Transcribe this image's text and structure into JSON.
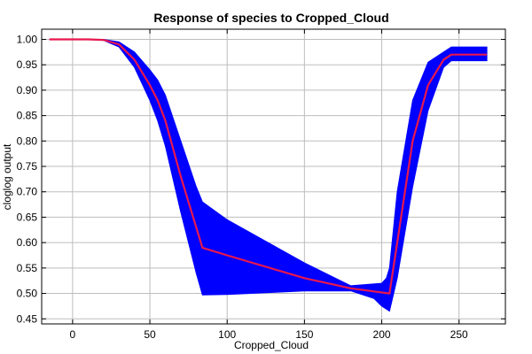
{
  "chart_data": {
    "type": "line",
    "title": "Response of species to Cropped_Cloud",
    "xlabel": "Cropped_Cloud",
    "ylabel": "cloglog output",
    "xlim": [
      -20,
      280
    ],
    "ylim": [
      0.44,
      1.02
    ],
    "grid": true,
    "x_ticks": [
      0,
      50,
      100,
      150,
      200,
      250
    ],
    "y_ticks": [
      0.45,
      0.5,
      0.55,
      0.6,
      0.65,
      0.7,
      0.75,
      0.8,
      0.85,
      0.9,
      0.95,
      1.0
    ],
    "colors": {
      "band": "#0000ff",
      "mean": "#e8174e"
    },
    "series": [
      {
        "role": "mean",
        "x": [
          -15,
          0,
          10,
          20,
          30,
          40,
          50,
          55,
          60,
          70,
          80,
          84,
          100,
          150,
          180,
          205,
          210,
          220,
          230,
          240,
          245,
          268
        ],
        "y": [
          1.0,
          1.0,
          1.0,
          0.999,
          0.99,
          0.96,
          0.91,
          0.88,
          0.84,
          0.73,
          0.63,
          0.59,
          0.575,
          0.53,
          0.51,
          0.5,
          0.6,
          0.8,
          0.91,
          0.96,
          0.97,
          0.97
        ]
      },
      {
        "role": "upper",
        "x": [
          -15,
          0,
          10,
          20,
          30,
          40,
          50,
          55,
          60,
          70,
          80,
          84,
          100,
          150,
          180,
          200,
          203,
          205,
          210,
          220,
          230,
          240,
          245,
          268
        ],
        "y": [
          1.0,
          1.0,
          1.0,
          1.0,
          0.995,
          0.975,
          0.94,
          0.92,
          0.89,
          0.8,
          0.71,
          0.68,
          0.645,
          0.56,
          0.515,
          0.52,
          0.53,
          0.55,
          0.7,
          0.88,
          0.955,
          0.975,
          0.985,
          0.985
        ]
      },
      {
        "role": "lower",
        "x": [
          -15,
          0,
          10,
          20,
          30,
          40,
          50,
          55,
          60,
          70,
          80,
          84,
          100,
          150,
          180,
          195,
          200,
          205,
          210,
          220,
          230,
          240,
          245,
          268
        ],
        "y": [
          1.0,
          1.0,
          1.0,
          0.998,
          0.985,
          0.945,
          0.88,
          0.84,
          0.79,
          0.66,
          0.54,
          0.497,
          0.498,
          0.505,
          0.505,
          0.49,
          0.475,
          0.465,
          0.53,
          0.71,
          0.86,
          0.945,
          0.958,
          0.958
        ]
      }
    ]
  }
}
